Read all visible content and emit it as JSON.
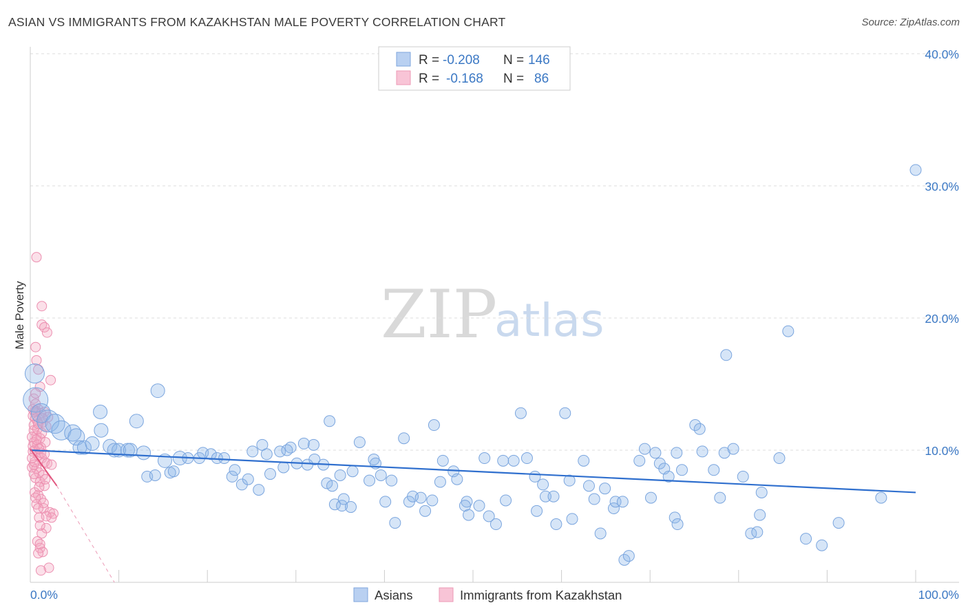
{
  "title": "ASIAN VS IMMIGRANTS FROM KAZAKHSTAN MALE POVERTY CORRELATION CHART",
  "source": "Source: ZipAtlas.com",
  "watermark": {
    "zip": "ZIP",
    "atlas": "atlas"
  },
  "chart_data": {
    "type": "scatter",
    "title": "ASIAN VS IMMIGRANTS FROM KAZAKHSTAN MALE POVERTY CORRELATION CHART",
    "xlabel": "",
    "ylabel": "Male Poverty",
    "xlim": [
      0,
      100
    ],
    "ylim": [
      0,
      40
    ],
    "x_tick_labels": [
      "0.0%",
      "100.0%"
    ],
    "y_ticks": [
      10,
      20,
      30,
      40
    ],
    "y_tick_labels": [
      "10.0%",
      "20.0%",
      "30.0%",
      "40.0%"
    ],
    "grid": true,
    "legend": {
      "position": "top-center",
      "rows": [
        {
          "r_label": "R =",
          "r_value": "-0.208",
          "n_label": "N =",
          "n_value": "146"
        },
        {
          "r_label": "R =",
          "r_value": "-0.168",
          "n_label": "N =",
          "n_value": "86"
        }
      ]
    },
    "series": [
      {
        "name": "Asians",
        "color": "#8ab4e8",
        "line_color": "#2f6fce",
        "trend": {
          "x": [
            0,
            100
          ],
          "y": [
            10.0,
            6.8
          ]
        },
        "points": [
          [
            0.5,
            15.8,
            14
          ],
          [
            0.6,
            13.8,
            18
          ],
          [
            1.2,
            12.8,
            14
          ],
          [
            2,
            12.2,
            16
          ],
          [
            2.8,
            12.0,
            14
          ],
          [
            3.5,
            11.5,
            14
          ],
          [
            4.8,
            11.3,
            12
          ],
          [
            5.2,
            11.0,
            12
          ],
          [
            5.6,
            10.2,
            10
          ],
          [
            6.1,
            10.2,
            10
          ],
          [
            7,
            10.5,
            10
          ],
          [
            8,
            11.5,
            10
          ],
          [
            7.9,
            12.9,
            10
          ],
          [
            9,
            10.3,
            10
          ],
          [
            9.5,
            10.0,
            10
          ],
          [
            10,
            10.0,
            10
          ],
          [
            11,
            10.0,
            10
          ],
          [
            12,
            12.2,
            10
          ],
          [
            14.4,
            14.5,
            10
          ],
          [
            11.3,
            10.0,
            10
          ],
          [
            12.8,
            9.8,
            10
          ],
          [
            13.2,
            8.0,
            8
          ],
          [
            14.1,
            8.1,
            8
          ],
          [
            15.2,
            9.2,
            10
          ],
          [
            15.8,
            8.3,
            8
          ],
          [
            16.2,
            8.4,
            8
          ],
          [
            16.9,
            9.4,
            10
          ],
          [
            17.8,
            9.4,
            8
          ],
          [
            19.1,
            9.4,
            8
          ],
          [
            19.5,
            9.8,
            8
          ],
          [
            20.4,
            9.7,
            8
          ],
          [
            21.1,
            9.4,
            8
          ],
          [
            21.9,
            9.4,
            8
          ],
          [
            22.8,
            8.0,
            8
          ],
          [
            23.1,
            8.5,
            8
          ],
          [
            23.9,
            7.4,
            8
          ],
          [
            24.6,
            7.8,
            8
          ],
          [
            25.1,
            9.9,
            8
          ],
          [
            26.2,
            10.4,
            8
          ],
          [
            26.7,
            9.7,
            8
          ],
          [
            25.8,
            7.0,
            8
          ],
          [
            27.1,
            8.2,
            8
          ],
          [
            28.2,
            9.9,
            8
          ],
          [
            28.6,
            8.7,
            8
          ],
          [
            29.4,
            10.2,
            8
          ],
          [
            30.1,
            9.0,
            8
          ],
          [
            30.9,
            10.5,
            8
          ],
          [
            31.3,
            8.9,
            8
          ],
          [
            32.1,
            9.3,
            8
          ],
          [
            33.1,
            8.9,
            8
          ],
          [
            33.5,
            7.5,
            8
          ],
          [
            34.1,
            7.3,
            8
          ],
          [
            34.4,
            5.9,
            8
          ],
          [
            35.2,
            5.8,
            8
          ],
          [
            35.4,
            6.3,
            8
          ],
          [
            36.2,
            5.7,
            8
          ],
          [
            32.0,
            10.4,
            8
          ],
          [
            33.8,
            12.2,
            8
          ],
          [
            35.0,
            8.1,
            8
          ],
          [
            36.4,
            8.4,
            8
          ],
          [
            37.2,
            10.6,
            8
          ],
          [
            38.3,
            7.7,
            8
          ],
          [
            38.8,
            9.3,
            8
          ],
          [
            39.0,
            9.0,
            8
          ],
          [
            39.6,
            8.1,
            8
          ],
          [
            40.1,
            6.1,
            8
          ],
          [
            40.8,
            7.7,
            8
          ],
          [
            41.2,
            4.5,
            8
          ],
          [
            42.2,
            10.9,
            8
          ],
          [
            42.8,
            6.1,
            8
          ],
          [
            43.2,
            6.5,
            8
          ],
          [
            44.1,
            6.4,
            8
          ],
          [
            44.6,
            5.4,
            8
          ],
          [
            45.4,
            6.2,
            8
          ],
          [
            45.6,
            11.9,
            8
          ],
          [
            46.3,
            7.6,
            8
          ],
          [
            46.6,
            9.2,
            8
          ],
          [
            47.8,
            8.4,
            8
          ],
          [
            48.2,
            7.8,
            8
          ],
          [
            49.3,
            6.1,
            8
          ],
          [
            49.1,
            5.8,
            8
          ],
          [
            49.5,
            5.1,
            8
          ],
          [
            50.7,
            5.8,
            8
          ],
          [
            51.3,
            9.4,
            8
          ],
          [
            51.8,
            5.0,
            8
          ],
          [
            52.6,
            4.4,
            8
          ],
          [
            53.4,
            9.2,
            8
          ],
          [
            53.7,
            6.2,
            8
          ],
          [
            54.6,
            9.2,
            8
          ],
          [
            55.4,
            12.8,
            8
          ],
          [
            56.1,
            9.4,
            8
          ],
          [
            57.2,
            5.4,
            8
          ],
          [
            57.9,
            7.4,
            8
          ],
          [
            58.2,
            6.5,
            8
          ],
          [
            59.1,
            6.5,
            8
          ],
          [
            59.4,
            4.4,
            8
          ],
          [
            60.4,
            12.8,
            8
          ],
          [
            60.9,
            7.7,
            8
          ],
          [
            61.2,
            4.8,
            8
          ],
          [
            62.5,
            9.2,
            8
          ],
          [
            63.1,
            7.3,
            8
          ],
          [
            63.7,
            6.3,
            8
          ],
          [
            64.4,
            3.7,
            8
          ],
          [
            64.9,
            7.1,
            8
          ],
          [
            65.9,
            5.6,
            8
          ],
          [
            66.1,
            6.1,
            8
          ],
          [
            66.9,
            6.1,
            8
          ],
          [
            67.1,
            1.7,
            8
          ],
          [
            67.6,
            2.0,
            8
          ],
          [
            68.8,
            9.2,
            8
          ],
          [
            69.4,
            10.1,
            8
          ],
          [
            70.1,
            6.4,
            8
          ],
          [
            70.6,
            9.8,
            8
          ],
          [
            71.1,
            9.0,
            8
          ],
          [
            71.6,
            8.6,
            8
          ],
          [
            72.1,
            8.0,
            8
          ],
          [
            72.8,
            4.9,
            8
          ],
          [
            73.1,
            4.4,
            8
          ],
          [
            73.6,
            8.5,
            8
          ],
          [
            75.1,
            11.9,
            8
          ],
          [
            75.6,
            11.6,
            8
          ],
          [
            75.9,
            9.9,
            8
          ],
          [
            77.2,
            8.5,
            8
          ],
          [
            78.4,
            9.8,
            8
          ],
          [
            79.4,
            10.1,
            8
          ],
          [
            77.9,
            6.4,
            8
          ],
          [
            78.6,
            17.2,
            8
          ],
          [
            80.5,
            8.0,
            8
          ],
          [
            81.4,
            3.7,
            8
          ],
          [
            82.1,
            3.8,
            8
          ],
          [
            82.6,
            6.8,
            8
          ],
          [
            82.4,
            5.1,
            8
          ],
          [
            85.6,
            19.0,
            8
          ],
          [
            84.6,
            9.4,
            8
          ],
          [
            87.6,
            3.3,
            8
          ],
          [
            89.4,
            2.8,
            8
          ],
          [
            91.3,
            4.5,
            8
          ],
          [
            96.1,
            6.4,
            8
          ],
          [
            100.0,
            31.2,
            8
          ],
          [
            73.0,
            9.8,
            8
          ],
          [
            57.0,
            8.0,
            8
          ],
          [
            29.0,
            10.0,
            8
          ]
        ]
      },
      {
        "name": "Immigrants from Kazakhstan",
        "color": "#f4a6c0",
        "line_color": "#e2577f",
        "trend": {
          "x": [
            0,
            3.0
          ],
          "y": [
            10.1,
            7.3
          ]
        },
        "trend_dashed_extension": {
          "x": [
            3.0,
            9.5
          ],
          "y": [
            7.3,
            0.0
          ]
        },
        "points": [
          [
            0.7,
            24.6,
            7
          ],
          [
            1.3,
            20.9,
            7
          ],
          [
            1.3,
            19.5,
            7
          ],
          [
            1.6,
            19.3,
            7
          ],
          [
            1.9,
            18.9,
            7
          ],
          [
            0.6,
            17.8,
            7
          ],
          [
            0.7,
            16.8,
            7
          ],
          [
            0.9,
            16.1,
            7
          ],
          [
            2.3,
            15.3,
            7
          ],
          [
            1.1,
            14.8,
            7
          ],
          [
            0.4,
            13.9,
            7
          ],
          [
            0.6,
            13.5,
            7
          ],
          [
            0.9,
            13.1,
            7
          ],
          [
            1.2,
            12.8,
            7
          ],
          [
            1.6,
            12.9,
            7
          ],
          [
            0.3,
            12.6,
            7
          ],
          [
            0.6,
            12.4,
            7
          ],
          [
            0.8,
            12.2,
            7
          ],
          [
            1.4,
            12.1,
            7
          ],
          [
            1.8,
            11.8,
            7
          ],
          [
            0.4,
            11.5,
            7
          ],
          [
            0.7,
            11.1,
            7
          ],
          [
            1.1,
            10.9,
            7
          ],
          [
            0.4,
            10.6,
            7
          ],
          [
            0.8,
            10.4,
            7
          ],
          [
            1.2,
            10.2,
            7
          ],
          [
            0.5,
            10.0,
            7
          ],
          [
            0.9,
            9.6,
            7
          ],
          [
            1.3,
            9.4,
            7
          ],
          [
            1.6,
            9.1,
            7
          ],
          [
            0.4,
            8.9,
            7
          ],
          [
            0.7,
            8.6,
            7
          ],
          [
            1.0,
            8.3,
            7
          ],
          [
            1.4,
            8.1,
            7
          ],
          [
            0.6,
            7.9,
            7
          ],
          [
            1.1,
            7.6,
            7
          ],
          [
            1.6,
            7.3,
            7
          ],
          [
            0.5,
            6.8,
            7
          ],
          [
            0.9,
            6.6,
            7
          ],
          [
            1.2,
            6.3,
            7
          ],
          [
            0.7,
            5.9,
            7
          ],
          [
            1.5,
            5.6,
            7
          ],
          [
            2.2,
            5.3,
            7
          ],
          [
            2.6,
            5.2,
            7
          ],
          [
            1.0,
            4.9,
            7
          ],
          [
            2.4,
            4.9,
            7
          ],
          [
            1.8,
            4.1,
            7
          ],
          [
            1.3,
            3.7,
            7
          ],
          [
            0.8,
            3.1,
            7
          ],
          [
            1.1,
            2.6,
            7
          ],
          [
            1.4,
            2.3,
            7
          ],
          [
            0.9,
            2.2,
            7
          ],
          [
            2.1,
            1.1,
            7
          ],
          [
            1.2,
            0.9,
            7
          ],
          [
            0.3,
            9.9,
            7
          ],
          [
            0.2,
            8.7,
            7
          ],
          [
            0.5,
            9.1,
            7
          ],
          [
            1.9,
            9.0,
            7
          ],
          [
            1.7,
            10.6,
            7
          ],
          [
            2.0,
            12.5,
            7
          ],
          [
            0.4,
            11.9,
            7
          ],
          [
            0.6,
            13.0,
            7
          ],
          [
            1.0,
            7.2,
            7
          ],
          [
            0.2,
            11.0,
            7
          ],
          [
            0.3,
            10.3,
            7
          ],
          [
            0.8,
            11.6,
            7
          ],
          [
            1.5,
            6.0,
            7
          ],
          [
            0.6,
            14.3,
            7
          ],
          [
            1.2,
            9.8,
            7
          ],
          [
            0.4,
            8.2,
            7
          ],
          [
            1.8,
            5.0,
            7
          ],
          [
            1.1,
            4.3,
            7
          ],
          [
            0.7,
            10.8,
            7
          ],
          [
            0.9,
            12.0,
            7
          ],
          [
            1.3,
            11.3,
            7
          ],
          [
            0.5,
            12.9,
            7
          ],
          [
            1.7,
            7.8,
            7
          ],
          [
            2.4,
            8.9,
            7
          ],
          [
            0.2,
            9.4,
            7
          ],
          [
            1.0,
            10.1,
            7
          ],
          [
            1.4,
            12.4,
            7
          ],
          [
            0.3,
            13.1,
            7
          ],
          [
            0.6,
            6.4,
            7
          ],
          [
            1.1,
            2.9,
            7
          ],
          [
            0.9,
            5.6,
            7
          ],
          [
            1.6,
            9.7,
            7
          ]
        ]
      }
    ]
  },
  "bottom_legend": {
    "asians_label": "Asians",
    "kazakhstan_label": "Immigrants from Kazakhstan"
  }
}
